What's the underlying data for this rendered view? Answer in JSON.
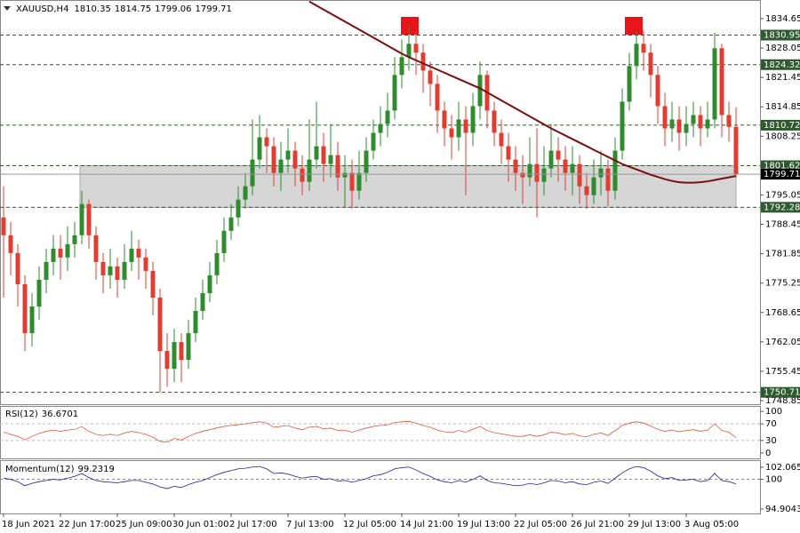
{
  "chart_data": {
    "type": "candlestick",
    "symbol": "XAUUSD,H4",
    "categories": [
      "18 Jun 2021",
      null,
      null,
      null,
      null,
      null,
      null,
      null,
      "22 Jun 17:00",
      null,
      null,
      null,
      null,
      null,
      null,
      null,
      "25 Jun 09:00",
      null,
      null,
      null,
      null,
      null,
      null,
      null,
      "30 Jun 01:00",
      null,
      null,
      null,
      null,
      null,
      null,
      null,
      "2 Jul 17:00",
      null,
      null,
      null,
      null,
      null,
      null,
      null,
      "7 Jul 13:00",
      null,
      null,
      null,
      null,
      null,
      null,
      null,
      "12 Jul 05:00",
      null,
      null,
      null,
      null,
      null,
      null,
      null,
      "14 Jul 21:00",
      null,
      null,
      null,
      null,
      null,
      null,
      null,
      "19 Jul 13:00",
      null,
      null,
      null,
      null,
      null,
      null,
      null,
      "22 Jul 05:00",
      null,
      null,
      null,
      null,
      null,
      null,
      null,
      "26 Jul 21:00",
      null,
      null,
      null,
      null,
      null,
      null,
      null,
      "29 Jul 13:00",
      null,
      null,
      null,
      null,
      null,
      null,
      null,
      "3 Aug 05:00",
      null,
      null,
      null,
      null,
      null,
      null,
      null
    ],
    "open": [
      1790,
      1786,
      1782,
      1775,
      1764,
      1770,
      1776,
      1780,
      1783,
      1781,
      1784,
      1786,
      1793,
      1786,
      1780,
      1777,
      1779,
      1776,
      1780,
      1783,
      1781,
      1778,
      1772,
      1760,
      1756,
      1762,
      1758,
      1764,
      1769,
      1773,
      1777,
      1782,
      1787,
      1790,
      1794,
      1797,
      1803,
      1808,
      1806,
      1800,
      1803,
      1805,
      1801,
      1798,
      1803,
      1806,
      1802,
      1804,
      1799,
      1800,
      1796,
      1800,
      1805,
      1809,
      1811,
      1814,
      1822,
      1826,
      1829,
      1827,
      1823,
      1820,
      1814,
      1810,
      1808,
      1812,
      1809,
      1815,
      1822,
      1814,
      1809,
      1806,
      1803,
      1800,
      1799,
      1802,
      1798,
      1801,
      1805,
      1803,
      1800,
      1802,
      1797,
      1795,
      1799,
      1801,
      1796,
      1805,
      1816,
      1824,
      1829,
      1827,
      1822,
      1815,
      1810,
      1812,
      1809,
      1811,
      1813,
      1810,
      1812,
      1828,
      1813,
      1810.35
    ],
    "high": [
      1797,
      1789,
      1784,
      1777,
      1773,
      1779,
      1783,
      1786,
      1786,
      1788,
      1789,
      1796,
      1794,
      1788,
      1782,
      1783,
      1781,
      1784,
      1787,
      1785,
      1783,
      1780,
      1774,
      1764,
      1765,
      1764,
      1767,
      1772,
      1776,
      1780,
      1785,
      1790,
      1793,
      1797,
      1800,
      1812,
      1813,
      1810,
      1808,
      1807,
      1810,
      1807,
      1804,
      1812,
      1816,
      1809,
      1811,
      1807,
      1804,
      1803,
      1805,
      1808,
      1812,
      1815,
      1818,
      1826,
      1830,
      1833,
      1832,
      1829,
      1825,
      1822,
      1816,
      1813,
      1816,
      1815,
      1818,
      1825,
      1823,
      1816,
      1812,
      1809,
      1806,
      1804,
      1808,
      1810,
      1806,
      1811,
      1808,
      1806,
      1806,
      1804,
      1800,
      1803,
      1805,
      1803,
      1808,
      1819,
      1827,
      1832,
      1832,
      1829,
      1824,
      1818,
      1816,
      1815,
      1815,
      1816,
      1815,
      1816,
      1831.5,
      1829,
      1816,
      1814.75
    ],
    "low": [
      1772,
      1777,
      1770,
      1760,
      1761,
      1767,
      1773,
      1777,
      1776,
      1778,
      1781,
      1784,
      1783,
      1776,
      1773,
      1774,
      1772,
      1774,
      1778,
      1776,
      1774,
      1768,
      1750.7,
      1752,
      1753,
      1753,
      1756,
      1762,
      1767,
      1771,
      1775,
      1780,
      1785,
      1788,
      1792,
      1795,
      1801,
      1800,
      1797,
      1796,
      1800,
      1797,
      1795,
      1796,
      1801,
      1798,
      1799,
      1796,
      1792.3,
      1792,
      1794,
      1798,
      1803,
      1806,
      1808,
      1812,
      1819,
      1823,
      1822,
      1818,
      1815,
      1809,
      1806,
      1803,
      1805,
      1795,
      1806,
      1812,
      1810,
      1806,
      1802,
      1798,
      1796,
      1793,
      1797,
      1790,
      1795,
      1799,
      1798,
      1796,
      1795,
      1793,
      1792,
      1793,
      1795,
      1792.5,
      1794,
      1803,
      1814,
      1821,
      1823,
      1817,
      1811,
      1806,
      1807,
      1805,
      1806,
      1808,
      1806,
      1808,
      1810,
      1808,
      1807,
      1799.06
    ],
    "close": [
      1786,
      1782,
      1775,
      1764,
      1770,
      1776,
      1780,
      1783,
      1781,
      1784,
      1786,
      1793,
      1786,
      1780,
      1777,
      1779,
      1776,
      1780,
      1783,
      1781,
      1778,
      1772,
      1760,
      1756,
      1762,
      1758,
      1764,
      1769,
      1773,
      1777,
      1782,
      1787,
      1790,
      1794,
      1797,
      1803,
      1808,
      1806,
      1800,
      1803,
      1805,
      1801,
      1798,
      1803,
      1806,
      1802,
      1804,
      1799,
      1800,
      1796,
      1800,
      1805,
      1809,
      1811,
      1814,
      1822,
      1826,
      1829,
      1827,
      1823,
      1820,
      1814,
      1810,
      1808,
      1812,
      1809,
      1815,
      1822,
      1814,
      1809,
      1806,
      1803,
      1800,
      1799,
      1802,
      1798,
      1801,
      1805,
      1803,
      1800,
      1802,
      1797,
      1795,
      1799,
      1801,
      1796,
      1805,
      1816,
      1824,
      1829,
      1827,
      1822,
      1815,
      1810,
      1812,
      1809,
      1811,
      1813,
      1810,
      1812,
      1828,
      1813,
      1810.35,
      1799.71
    ],
    "up_color": "#2e8b2e",
    "down_color": "#e03c31",
    "ylim": [
      1748.05,
      1838.84
    ],
    "yticks": [
      1834.65,
      1828.05,
      1821.45,
      1814.85,
      1808.25,
      1795.05,
      1788.45,
      1781.85,
      1775.25,
      1768.65,
      1762.05,
      1755.45,
      1748.85
    ],
    "levels": [
      1830.95,
      1824.32,
      1810.72,
      1801.62,
      1792.28,
      1750.71
    ],
    "level_color": "#2f5a2f",
    "zone_color": "#d6d6d6",
    "ma": {
      "color": "#7a0f0f",
      "values": [
        null,
        null,
        null,
        null,
        null,
        null,
        null,
        null,
        null,
        null,
        null,
        null,
        null,
        null,
        null,
        null,
        null,
        null,
        null,
        null,
        null,
        null,
        null,
        null,
        null,
        null,
        null,
        null,
        null,
        null,
        null,
        null,
        null,
        null,
        null,
        null,
        null,
        null,
        null,
        null,
        null,
        null,
        null,
        1838.5,
        1837.6,
        1836.7,
        1835.8,
        1834.9,
        1834.0,
        1833.1,
        1832.2,
        1831.3,
        1830.4,
        1829.5,
        1828.6,
        1827.7,
        1826.8,
        1826.0,
        1825.3,
        1824.6,
        1823.9,
        1823.2,
        1822.5,
        1821.8,
        1821.1,
        1820.4,
        1819.7,
        1819.0,
        1818.1,
        1817.2,
        1816.3,
        1815.4,
        1814.5,
        1813.6,
        1812.7,
        1811.8,
        1810.9,
        1810.0,
        1809.2,
        1808.4,
        1807.6,
        1806.8,
        1806.0,
        1805.2,
        1804.4,
        1803.6,
        1802.8,
        1802.0,
        1801.4,
        1800.8,
        1800.2,
        1799.6,
        1799.1,
        1798.6,
        1798.2,
        1797.9,
        1797.8,
        1797.8,
        1797.9,
        1798.1,
        1798.4,
        1798.7,
        1799.0,
        1799.3
      ]
    },
    "rsi": {
      "name": "RSI(12)",
      "color": "#e05a40",
      "ylim": [
        -13,
        113
      ],
      "yticks": [
        100,
        70,
        30,
        0
      ],
      "levels": [
        70,
        30
      ],
      "values": [
        50,
        45,
        40,
        32,
        40,
        47,
        52,
        55,
        52,
        55,
        57,
        63,
        52,
        45,
        42,
        45,
        42,
        48,
        52,
        49,
        45,
        38,
        28,
        26,
        35,
        31,
        40,
        47,
        52,
        56,
        60,
        64,
        66,
        68,
        70,
        73,
        75,
        72,
        62,
        64,
        66,
        60,
        56,
        62,
        64,
        58,
        60,
        54,
        55,
        50,
        55,
        60,
        64,
        66,
        68,
        73,
        75,
        76,
        72,
        66,
        62,
        55,
        51,
        49,
        54,
        50,
        57,
        64,
        54,
        49,
        46,
        43,
        40,
        40,
        44,
        40,
        44,
        50,
        48,
        44,
        47,
        41,
        39,
        45,
        48,
        42,
        54,
        66,
        72,
        75,
        72,
        65,
        57,
        52,
        55,
        51,
        54,
        56,
        52,
        55,
        70,
        54,
        50,
        36.6701
      ]
    },
    "momentum": {
      "name": "Momentum(12)",
      "color": "#2a1a9a",
      "ylim": [
        94.142,
        103.285
      ],
      "yticks": [
        102.0653,
        100,
        94.9043
      ],
      "levels": [
        100
      ],
      "values": [
        100.2,
        100.0,
        99.6,
        98.9,
        99.3,
        99.6,
        99.8,
        100.0,
        99.9,
        100.2,
        100.5,
        101.0,
        100.3,
        99.8,
        99.6,
        99.5,
        99.4,
        99.6,
        99.8,
        99.8,
        99.5,
        99.2,
        98.7,
        98.4,
        98.8,
        98.6,
        99.1,
        99.5,
        99.8,
        100.3,
        100.8,
        101.2,
        101.5,
        101.8,
        101.9,
        102.1,
        102.2,
        101.8,
        101.0,
        101.1,
        100.9,
        100.5,
        100.2,
        100.4,
        100.5,
        100.0,
        100.1,
        99.7,
        99.8,
        99.5,
        99.8,
        100.1,
        100.6,
        100.8,
        101.2,
        101.8,
        102.0,
        102.1,
        101.6,
        101.0,
        100.5,
        99.9,
        99.6,
        99.4,
        99.8,
        99.5,
        100.0,
        100.6,
        99.8,
        99.4,
        99.3,
        99.1,
        98.9,
        99.0,
        99.3,
        99.1,
        99.4,
        99.8,
        99.7,
        99.4,
        99.6,
        99.2,
        99.1,
        99.5,
        99.7,
        99.3,
        100.2,
        101.1,
        101.8,
        102.2,
        102.0,
        101.4,
        100.6,
        100.1,
        100.3,
        99.8,
        99.9,
        100.0,
        99.6,
        99.8,
        101.0,
        99.8,
        99.6,
        99.2319
      ]
    }
  }
}
